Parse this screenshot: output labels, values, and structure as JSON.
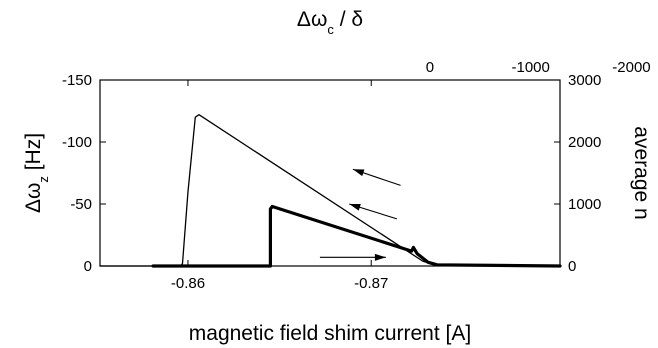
{
  "chart_data": {
    "type": "line",
    "xlabel": "magnetic field shim current [A]",
    "ylabel_left_main": "Δω",
    "ylabel_left_sub": "z",
    "ylabel_left_unit": " [Hz]",
    "ylabel_right": "average n",
    "xlabel_top_main": "Δω",
    "xlabel_top_sub": "c",
    "xlabel_top_rest": " / δ",
    "xlim": [
      -0.8552,
      -0.8803
    ],
    "ylim_left": [
      0,
      -150
    ],
    "ylim_right": [
      0,
      3000
    ],
    "bottom_ticks": [
      {
        "value": -0.86,
        "label": "-0.86"
      },
      {
        "value": -0.87,
        "label": "-0.87"
      }
    ],
    "top_ticks": [
      {
        "value": -2000,
        "label": "-2000"
      },
      {
        "value": -1000,
        "label": "-1000"
      },
      {
        "value": 0,
        "label": "0"
      }
    ],
    "top_axis_map": {
      "x_at_zero": -0.8732,
      "x_per_unit": 5.5e-06
    },
    "left_ticks": [
      {
        "value": -150,
        "label": "-150"
      },
      {
        "value": -100,
        "label": "-100"
      },
      {
        "value": -50,
        "label": "-50"
      },
      {
        "value": 0,
        "label": "0"
      }
    ],
    "right_ticks": [
      {
        "value": 3000,
        "label": "3000"
      },
      {
        "value": 2000,
        "label": "2000"
      },
      {
        "value": 1000,
        "label": "1000"
      },
      {
        "value": 0,
        "label": "0"
      }
    ],
    "grid": false,
    "series": [
      {
        "line_weight": "thin",
        "points": [
          [
            -0.8552,
            0
          ],
          [
            -0.8596,
            0
          ],
          [
            -0.8597,
            -2
          ],
          [
            -0.86,
            -60
          ],
          [
            -0.8604,
            -120
          ],
          [
            -0.8606,
            -122
          ],
          [
            -0.8728,
            -4
          ],
          [
            -0.8734,
            -1
          ],
          [
            -0.8803,
            0
          ]
        ]
      },
      {
        "line_weight": "thick",
        "points": [
          [
            -0.8581,
            0
          ],
          [
            -0.8645,
            0
          ],
          [
            -0.8645,
            -46
          ],
          [
            -0.8646,
            -48
          ],
          [
            -0.8722,
            -12
          ],
          [
            -0.8723,
            -15
          ],
          [
            -0.8725,
            -10
          ],
          [
            -0.8731,
            -3
          ],
          [
            -0.8736,
            -1
          ],
          [
            -0.8803,
            0
          ]
        ]
      }
    ],
    "arrows": [
      {
        "direction": "left",
        "from": [
          -0.8714,
          -38
        ],
        "to": [
          -0.8688,
          -50
        ]
      },
      {
        "direction": "left",
        "from": [
          -0.8716,
          -65
        ],
        "to": [
          -0.869,
          -78
        ]
      },
      {
        "direction": "right",
        "from": [
          -0.8672,
          -7
        ],
        "to": [
          -0.8708,
          -7
        ]
      }
    ]
  }
}
